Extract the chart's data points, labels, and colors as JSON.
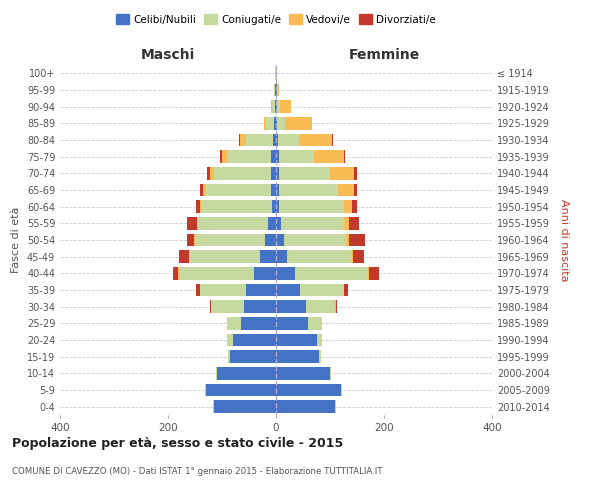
{
  "age_groups": [
    "0-4",
    "5-9",
    "10-14",
    "15-19",
    "20-24",
    "25-29",
    "30-34",
    "35-39",
    "40-44",
    "45-49",
    "50-54",
    "55-59",
    "60-64",
    "65-69",
    "70-74",
    "75-79",
    "80-84",
    "85-89",
    "90-94",
    "95-99",
    "100+"
  ],
  "birth_years": [
    "2010-2014",
    "2005-2009",
    "2000-2004",
    "1995-1999",
    "1990-1994",
    "1985-1989",
    "1980-1984",
    "1975-1979",
    "1970-1974",
    "1965-1969",
    "1960-1964",
    "1955-1959",
    "1950-1954",
    "1945-1949",
    "1940-1944",
    "1935-1939",
    "1930-1934",
    "1925-1929",
    "1920-1924",
    "1915-1919",
    "≤ 1914"
  ],
  "maschi": {
    "celibi": [
      115,
      130,
      110,
      85,
      80,
      65,
      60,
      55,
      40,
      30,
      20,
      15,
      8,
      10,
      10,
      10,
      5,
      3,
      2,
      1,
      0
    ],
    "coniugati": [
      2,
      2,
      2,
      3,
      10,
      25,
      60,
      85,
      140,
      130,
      130,
      130,
      130,
      120,
      105,
      80,
      50,
      15,
      5,
      3,
      1
    ],
    "vedovi": [
      0,
      0,
      0,
      0,
      0,
      0,
      1,
      1,
      2,
      2,
      2,
      2,
      3,
      5,
      8,
      10,
      12,
      5,
      2,
      0,
      0
    ],
    "divorziati": [
      0,
      0,
      0,
      0,
      0,
      0,
      2,
      8,
      8,
      18,
      12,
      18,
      8,
      5,
      5,
      3,
      2,
      0,
      0,
      0,
      0
    ]
  },
  "femmine": {
    "nubili": [
      110,
      120,
      100,
      80,
      75,
      60,
      55,
      45,
      35,
      20,
      15,
      10,
      5,
      5,
      5,
      5,
      3,
      2,
      2,
      1,
      0
    ],
    "coniugate": [
      2,
      2,
      2,
      3,
      10,
      25,
      55,
      80,
      135,
      120,
      115,
      115,
      120,
      110,
      95,
      65,
      40,
      15,
      5,
      2,
      1
    ],
    "vedove": [
      0,
      0,
      0,
      0,
      0,
      0,
      1,
      1,
      2,
      3,
      5,
      10,
      15,
      30,
      45,
      55,
      60,
      50,
      20,
      3,
      0
    ],
    "divorziate": [
      0,
      0,
      0,
      0,
      0,
      0,
      2,
      8,
      18,
      20,
      30,
      18,
      10,
      5,
      5,
      3,
      2,
      0,
      0,
      0,
      0
    ]
  },
  "colors": {
    "celibi_nubili": "#4472C4",
    "coniugati": "#C5D9A0",
    "vedovi": "#F9BB54",
    "divorziati": "#C0392B"
  },
  "xlim": 400,
  "title": "Popolazione per età, sesso e stato civile - 2015",
  "subtitle": "COMUNE DI CAVEZZO (MO) - Dati ISTAT 1° gennaio 2015 - Elaborazione TUTTITALIA.IT",
  "ylabel_left": "Fasce di età",
  "ylabel_right": "Anni di nascita",
  "xlabel_left": "Maschi",
  "xlabel_right": "Femmine"
}
